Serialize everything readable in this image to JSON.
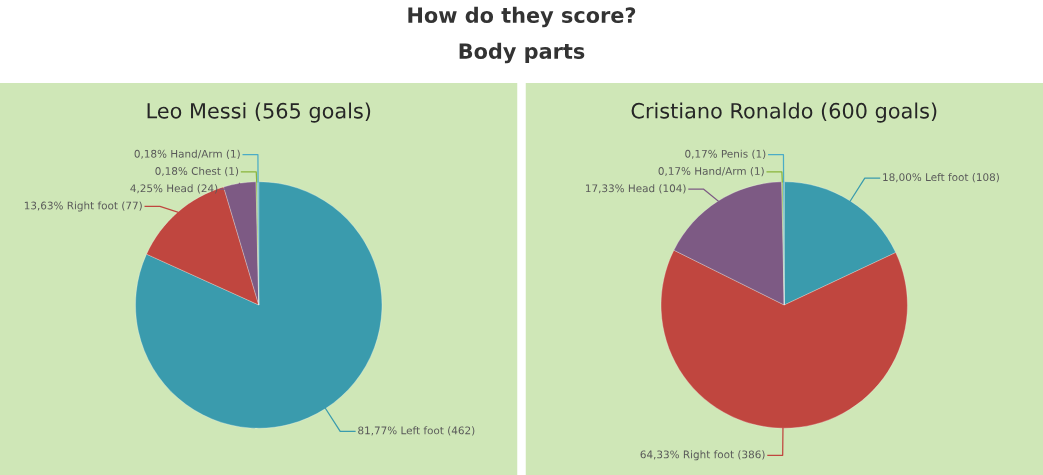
{
  "chart_data": [
    {
      "type": "pie",
      "title": "Leo Messi (565 goals)",
      "annotations": [
        "How do they score?",
        "Body parts"
      ],
      "categories": [
        "81,77% Left foot (462)",
        "13,63% Right foot (77)",
        "4,25% Head (24)",
        "0,18% Chest (1)",
        "0,18% Hand/Arm (1)"
      ],
      "values": [
        462,
        77,
        24,
        1,
        1
      ],
      "colors": [
        "#3a9bad",
        "#c0463f",
        "#7d5a84",
        "#8ab53c",
        "#4bacc6"
      ]
    },
    {
      "type": "pie",
      "title": "Cristiano Ronaldo (600 goals)",
      "categories": [
        "18,00% Left foot (108)",
        "64,33% Right foot (386)",
        "17,33% Head (104)",
        "0,17% Hand/Arm (1)",
        "0,17% Penis (1)"
      ],
      "values": [
        108,
        386,
        104,
        1,
        1
      ],
      "colors": [
        "#3a9bad",
        "#c0463f",
        "#7d5a84",
        "#8ab53c",
        "#4bacc6"
      ]
    }
  ]
}
